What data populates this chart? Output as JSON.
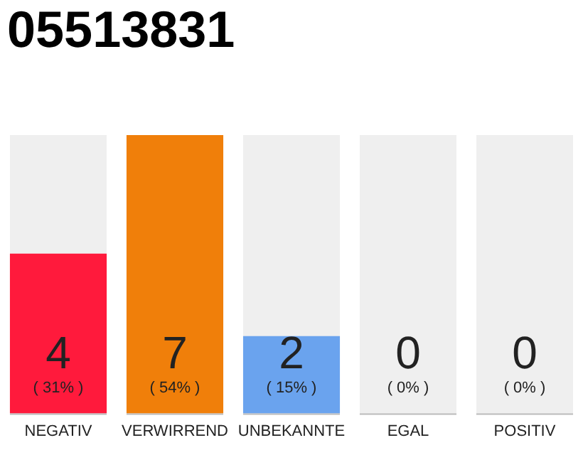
{
  "chart_data": {
    "type": "bar",
    "title": "05513831",
    "categories": [
      "NEGATIV",
      "VERWIRREND",
      "UNBEKANNTE",
      "EGAL",
      "POSITIV"
    ],
    "values": [
      31,
      54,
      15,
      0,
      0
    ],
    "value_labels": [
      "( 31% )",
      "( 54% )",
      "( 15% )",
      "( 0% )",
      "( 0% )"
    ],
    "colors": [
      "#ff1a3c",
      "#f07f0a",
      "#6aa3ee",
      "#efefef",
      "#efefef"
    ],
    "tick_labels": "x",
    "grid": false,
    "annotations": [
      {
        "text": "4",
        "x": "NEGATIV",
        "y": 0
      },
      {
        "text": "7",
        "x": "VERWIRREND",
        "y": 0
      },
      {
        "text": "2",
        "x": "UNBEKANNTE",
        "y": 0
      },
      {
        "text": "0",
        "x": "EGAL",
        "y": 0
      },
      {
        "text": "0",
        "x": "POSITIV",
        "y": 0
      }
    ]
  }
}
